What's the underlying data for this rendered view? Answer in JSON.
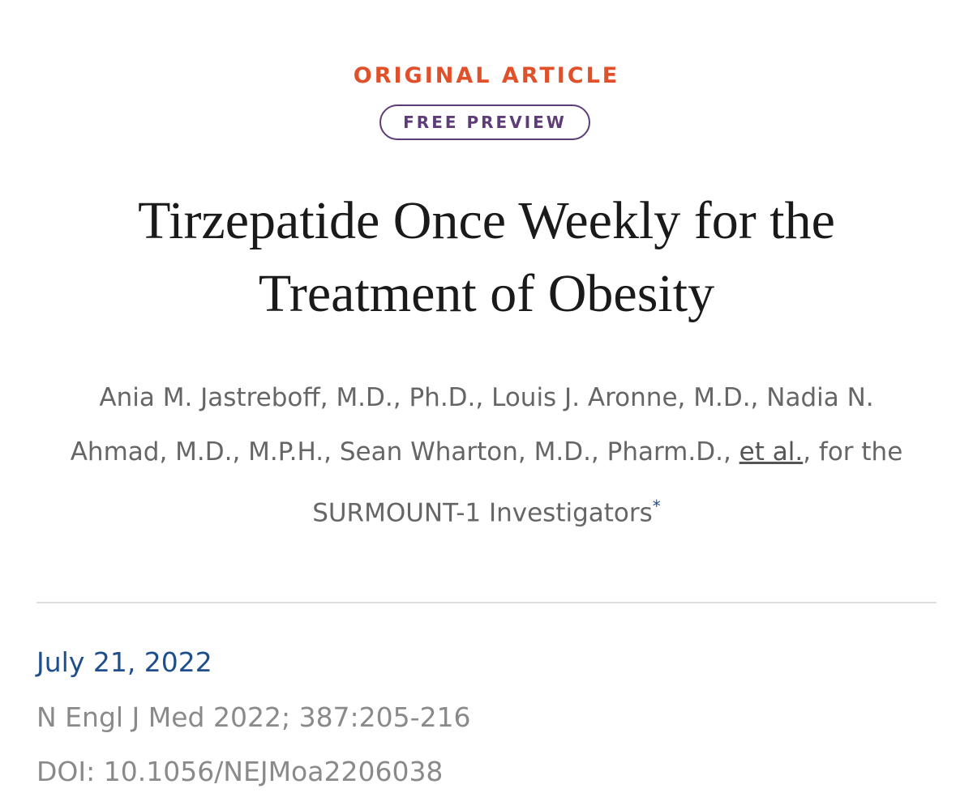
{
  "header": {
    "label": "ORIGINAL ARTICLE",
    "badge": "FREE PREVIEW",
    "title_lines": [
      "Tirzepatide Once Weekly for the",
      "Treatment of Obesity"
    ]
  },
  "authors": {
    "names": "Ania M. Jastreboff, M.D., Ph.D., Louis J. Aronne, M.D., Nadia N. Ahmad, M.D., M.P.H., Sean Wharton, M.D., Pharm.D.,",
    "more_link": "et al.",
    "group": ", for the SURMOUNT-1 Investigators",
    "footnote_mark": "*"
  },
  "meta": {
    "date": "July 21, 2022",
    "citation": "N Engl J Med 2022; 387:205-216",
    "doi": "DOI: 10.1056/NEJMoa2206038"
  }
}
